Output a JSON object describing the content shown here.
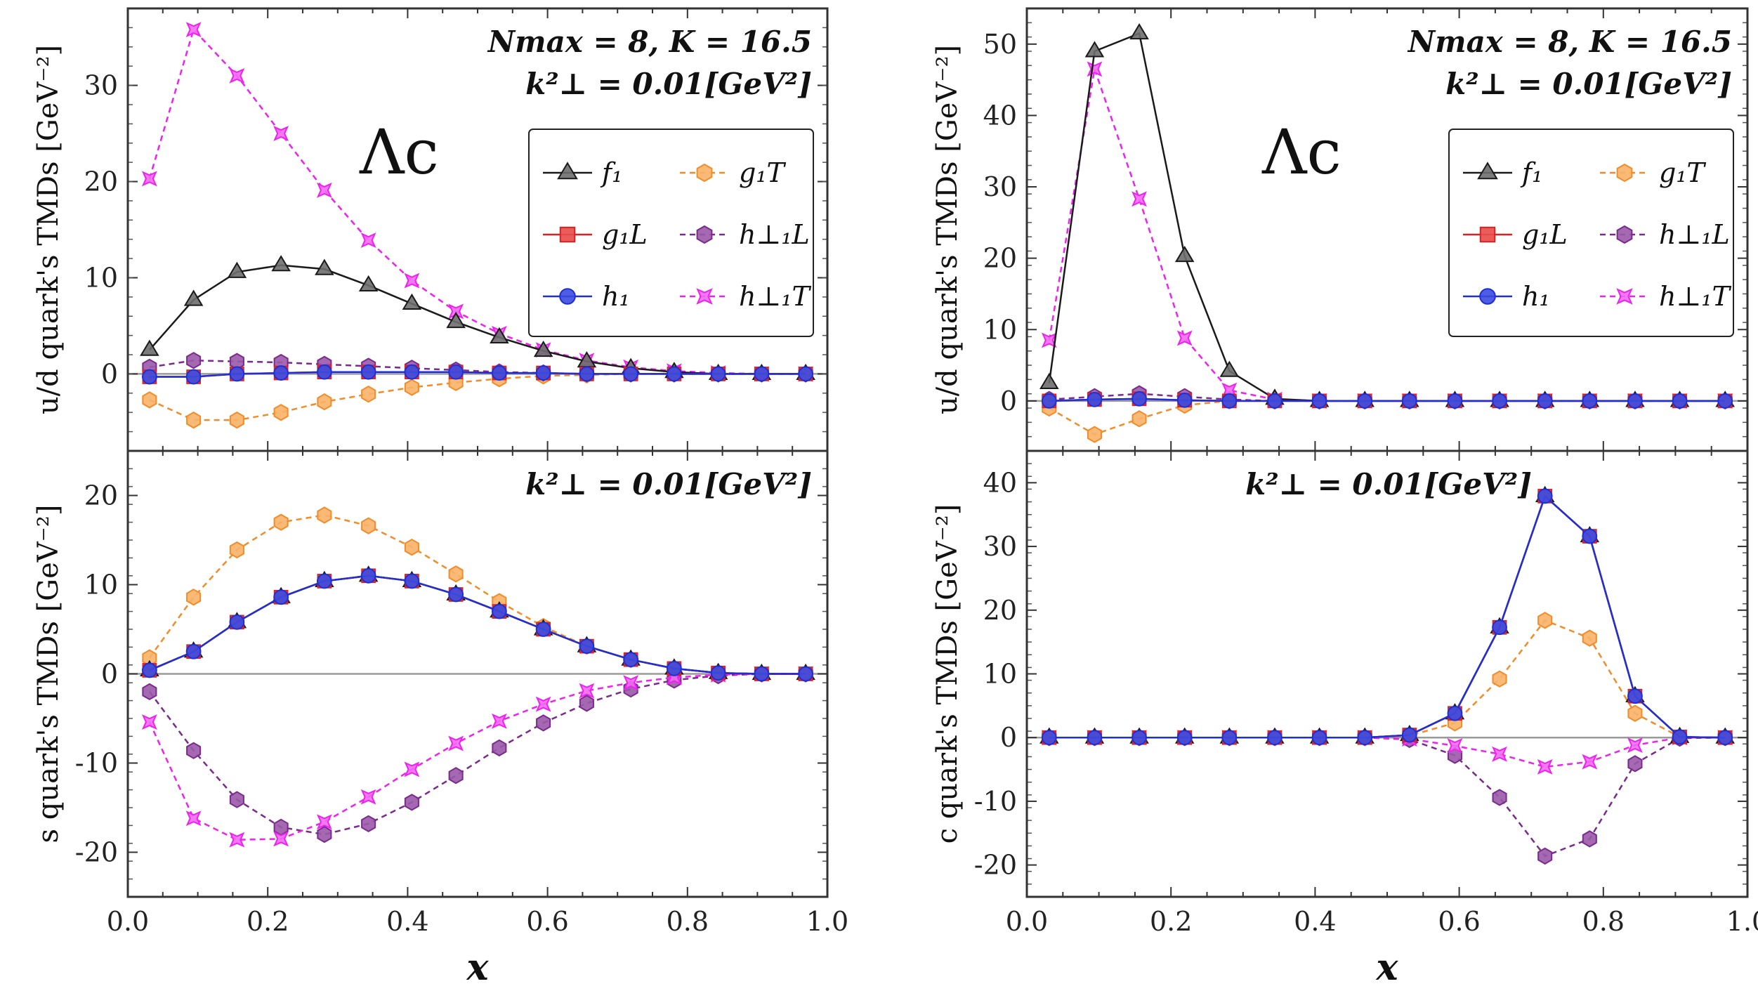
{
  "figure": {
    "x_label": "x",
    "big_label": "Λc"
  },
  "legend_entries": [
    {
      "key": "f1",
      "label": "f₁"
    },
    {
      "key": "g1T",
      "label": "g₁T"
    },
    {
      "key": "g1L",
      "label": "g₁L"
    },
    {
      "key": "h1Lperp",
      "label": "h⊥₁L"
    },
    {
      "key": "h1",
      "label": "h₁"
    },
    {
      "key": "h1Tperp",
      "label": "h⊥₁T"
    }
  ],
  "series_style": {
    "f1": {
      "color": "#1a1a1a",
      "fill": "#6e6e6e",
      "dash": "solid",
      "marker": "triangle"
    },
    "g1T": {
      "color": "#f28c28",
      "fill": "#f7b267",
      "dash": "dashed",
      "marker": "hexagon"
    },
    "g1L": {
      "color": "#e02020",
      "fill": "#e94b4b",
      "dash": "solid",
      "marker": "square"
    },
    "h1Lperp": {
      "color": "#7a2a8c",
      "fill": "#9b59a8",
      "dash": "dashed",
      "marker": "hexagon"
    },
    "h1": {
      "color": "#1f2fd6",
      "fill": "#3b4be0",
      "dash": "solid",
      "marker": "circle"
    },
    "h1Tperp": {
      "color": "#ee22ee",
      "fill": "#f26af2",
      "dash": "dashed",
      "marker": "star"
    }
  },
  "chart_data": [
    {
      "id": "ud",
      "type": "line",
      "ylabel": "u/d quark's TMDs [GeV⁻²]",
      "annotation_line1": "Nmax = 8,  K = 16.5",
      "annotation_line2": "k²⊥ = 0.01[GeV²]",
      "show_big_label": true,
      "show_legend": true,
      "xlim": [
        0,
        1
      ],
      "ylim": [
        -8,
        38
      ],
      "yticks": [
        0,
        10,
        20,
        30
      ],
      "x": [
        0.031,
        0.094,
        0.156,
        0.219,
        0.281,
        0.344,
        0.406,
        0.469,
        0.531,
        0.594,
        0.656,
        0.719,
        0.781,
        0.844,
        0.906,
        0.969
      ],
      "series": [
        {
          "key": "f1",
          "values": [
            2.5,
            7.7,
            10.6,
            11.3,
            10.9,
            9.2,
            7.3,
            5.4,
            3.8,
            2.4,
            1.3,
            0.6,
            0.2,
            0.0,
            0.0,
            0.0
          ]
        },
        {
          "key": "g1T",
          "values": [
            -2.7,
            -4.8,
            -4.8,
            -4.0,
            -2.9,
            -2.1,
            -1.4,
            -0.9,
            -0.5,
            -0.2,
            -0.1,
            0.0,
            0.0,
            0.0,
            0.0,
            0.0
          ]
        },
        {
          "key": "g1L",
          "values": [
            -0.3,
            -0.3,
            0.0,
            0.1,
            0.2,
            0.2,
            0.2,
            0.2,
            0.1,
            0.1,
            0.0,
            0.0,
            0.0,
            0.0,
            0.0,
            0.0
          ]
        },
        {
          "key": "h1Lperp",
          "values": [
            0.7,
            1.4,
            1.3,
            1.2,
            1.0,
            0.8,
            0.6,
            0.4,
            0.2,
            0.1,
            0.0,
            0.0,
            0.0,
            0.0,
            0.0,
            0.0
          ]
        },
        {
          "key": "h1",
          "values": [
            -0.3,
            -0.3,
            0.0,
            0.1,
            0.2,
            0.2,
            0.2,
            0.2,
            0.1,
            0.1,
            0.0,
            0.0,
            0.0,
            0.0,
            0.0,
            0.0
          ]
        },
        {
          "key": "h1Tperp",
          "values": [
            20.3,
            35.8,
            31.0,
            25.0,
            19.1,
            13.9,
            9.7,
            6.5,
            4.2,
            2.5,
            1.4,
            0.7,
            0.3,
            0.1,
            0.0,
            0.0
          ]
        }
      ]
    },
    {
      "id": "ud-right",
      "type": "line",
      "ylabel": "u/d quark's TMDs [GeV⁻²]",
      "annotation_line1": "Nmax = 8,  K = 16.5",
      "annotation_line2": "k²⊥ = 0.01[GeV²]",
      "show_big_label": true,
      "show_legend": true,
      "xlim": [
        0,
        1
      ],
      "ylim": [
        -7,
        55
      ],
      "yticks": [
        0,
        10,
        20,
        30,
        40,
        50
      ],
      "x": [
        0.031,
        0.094,
        0.156,
        0.219,
        0.281,
        0.344,
        0.406,
        0.469,
        0.531,
        0.594,
        0.656,
        0.719,
        0.781,
        0.844,
        0.906,
        0.969
      ],
      "series": [
        {
          "key": "f1",
          "values": [
            2.5,
            49.0,
            51.5,
            20.3,
            4.2,
            0.3,
            0.0,
            0.0,
            0.0,
            0.0,
            0.0,
            0.0,
            0.0,
            0.0,
            0.0,
            0.0
          ]
        },
        {
          "key": "g1T",
          "values": [
            -1.0,
            -4.7,
            -2.5,
            -0.6,
            0.0,
            0.0,
            0.0,
            0.0,
            0.0,
            0.0,
            0.0,
            0.0,
            0.0,
            0.0,
            0.0,
            0.0
          ]
        },
        {
          "key": "g1L",
          "values": [
            0.0,
            0.2,
            0.3,
            0.1,
            0.0,
            0.0,
            0.0,
            0.0,
            0.0,
            0.0,
            0.0,
            0.0,
            0.0,
            0.0,
            0.0,
            0.0
          ]
        },
        {
          "key": "h1Lperp",
          "values": [
            0.2,
            0.6,
            1.0,
            0.6,
            0.2,
            0.0,
            0.0,
            0.0,
            0.0,
            0.0,
            0.0,
            0.0,
            0.0,
            0.0,
            0.0,
            0.0
          ]
        },
        {
          "key": "h1",
          "values": [
            0.0,
            0.2,
            0.3,
            0.1,
            0.0,
            0.0,
            0.0,
            0.0,
            0.0,
            0.0,
            0.0,
            0.0,
            0.0,
            0.0,
            0.0,
            0.0
          ]
        },
        {
          "key": "h1Tperp",
          "values": [
            8.5,
            46.5,
            28.3,
            8.8,
            1.5,
            0.2,
            0.0,
            0.0,
            0.0,
            0.0,
            0.0,
            0.0,
            0.0,
            0.0,
            0.0,
            0.0
          ]
        }
      ]
    },
    {
      "id": "s",
      "type": "line",
      "ylabel": "s quark's TMDs [GeV⁻²]",
      "annotation_line1": "",
      "annotation_line2": "k²⊥ = 0.01[GeV²]",
      "show_big_label": false,
      "show_legend": false,
      "xlim": [
        0,
        1
      ],
      "ylim": [
        -25,
        25
      ],
      "yticks": [
        -20,
        -10,
        0,
        10,
        20
      ],
      "x": [
        0.031,
        0.094,
        0.156,
        0.219,
        0.281,
        0.344,
        0.406,
        0.469,
        0.531,
        0.594,
        0.656,
        0.719,
        0.781,
        0.844,
        0.906,
        0.969
      ],
      "series": [
        {
          "key": "f1",
          "values": [
            0.4,
            2.5,
            5.8,
            8.6,
            10.4,
            11.0,
            10.4,
            8.9,
            7.0,
            5.0,
            3.1,
            1.6,
            0.6,
            0.1,
            0.0,
            0.0
          ]
        },
        {
          "key": "g1T",
          "values": [
            1.8,
            8.6,
            13.9,
            17.0,
            17.8,
            16.6,
            14.2,
            11.2,
            8.1,
            5.3,
            3.1,
            1.6,
            0.6,
            0.1,
            0.0,
            0.0
          ]
        },
        {
          "key": "g1L",
          "values": [
            0.4,
            2.5,
            5.8,
            8.6,
            10.4,
            11.0,
            10.4,
            8.9,
            7.0,
            5.0,
            3.1,
            1.6,
            0.6,
            0.1,
            0.0,
            0.0
          ]
        },
        {
          "key": "h1Lperp",
          "values": [
            -2.0,
            -8.6,
            -14.1,
            -17.2,
            -18.0,
            -16.8,
            -14.4,
            -11.4,
            -8.3,
            -5.5,
            -3.3,
            -1.7,
            -0.7,
            -0.2,
            0.0,
            0.0
          ]
        },
        {
          "key": "h1",
          "values": [
            0.4,
            2.5,
            5.8,
            8.6,
            10.4,
            11.0,
            10.4,
            8.9,
            7.0,
            5.0,
            3.1,
            1.6,
            0.6,
            0.1,
            0.0,
            0.0
          ]
        },
        {
          "key": "h1Tperp",
          "values": [
            -5.4,
            -16.2,
            -18.6,
            -18.5,
            -16.6,
            -13.8,
            -10.7,
            -7.8,
            -5.3,
            -3.4,
            -1.9,
            -1.0,
            -0.4,
            -0.1,
            0.0,
            0.0
          ]
        }
      ]
    },
    {
      "id": "c",
      "type": "line",
      "ylabel": "c quark's TMDs [GeV⁻²]",
      "annotation_line1": "",
      "annotation_line2": "k²⊥ = 0.01[GeV²]",
      "show_big_label": false,
      "show_legend": false,
      "xlim": [
        0,
        1
      ],
      "ylim": [
        -25,
        45
      ],
      "yticks": [
        -20,
        -10,
        0,
        10,
        20,
        30,
        40
      ],
      "x": [
        0.031,
        0.094,
        0.156,
        0.219,
        0.281,
        0.344,
        0.406,
        0.469,
        0.531,
        0.594,
        0.656,
        0.719,
        0.781,
        0.844,
        0.906,
        0.969
      ],
      "series": [
        {
          "key": "f1",
          "values": [
            0.0,
            0.0,
            0.0,
            0.0,
            0.0,
            0.0,
            0.0,
            0.0,
            0.4,
            3.8,
            17.3,
            37.9,
            31.6,
            6.5,
            0.1,
            0.0
          ]
        },
        {
          "key": "g1T",
          "values": [
            0.0,
            0.0,
            0.0,
            0.0,
            0.0,
            0.0,
            0.0,
            0.0,
            0.3,
            2.3,
            9.2,
            18.4,
            15.6,
            3.8,
            0.1,
            0.0
          ]
        },
        {
          "key": "g1L",
          "values": [
            0.0,
            0.0,
            0.0,
            0.0,
            0.0,
            0.0,
            0.0,
            0.0,
            0.4,
            3.8,
            17.3,
            37.9,
            31.6,
            6.5,
            0.1,
            0.0
          ]
        },
        {
          "key": "h1Lperp",
          "values": [
            0.0,
            0.0,
            0.0,
            0.0,
            0.0,
            0.0,
            0.0,
            0.0,
            -0.3,
            -2.8,
            -9.4,
            -18.6,
            -15.9,
            -4.1,
            -0.1,
            0.0
          ]
        },
        {
          "key": "h1",
          "values": [
            0.0,
            0.0,
            0.0,
            0.0,
            0.0,
            0.0,
            0.0,
            0.0,
            0.4,
            3.8,
            17.3,
            37.9,
            31.6,
            6.5,
            0.1,
            0.0
          ]
        },
        {
          "key": "h1Tperp",
          "values": [
            0.0,
            0.0,
            0.0,
            0.0,
            0.0,
            0.0,
            0.0,
            0.0,
            -0.2,
            -1.3,
            -2.6,
            -4.6,
            -3.8,
            -1.2,
            0.0,
            0.0
          ]
        }
      ]
    }
  ]
}
